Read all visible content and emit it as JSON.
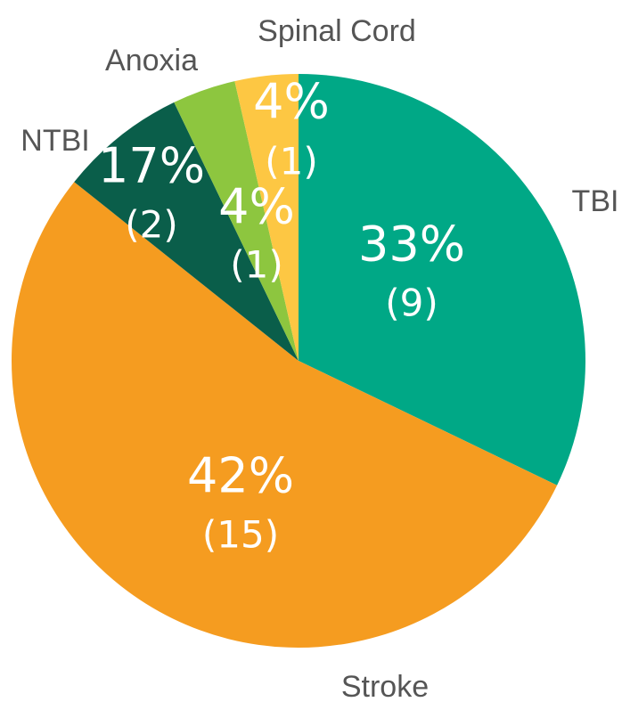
{
  "chart_data": {
    "type": "pie",
    "categories": [
      "TBI",
      "Stroke",
      "NTBI",
      "Anoxia",
      "Spinal Cord"
    ],
    "values": [
      33,
      42,
      17,
      4,
      4
    ],
    "value_labels": [
      "33%",
      "42%",
      "17%",
      "4%",
      "4%"
    ],
    "counts": [
      9,
      15,
      2,
      1,
      1
    ],
    "count_labels": [
      "(9)",
      "(15)",
      "(2)",
      "(1)",
      "(1)"
    ],
    "colors": [
      "#00a886",
      "#f59c20",
      "#0a5e4a",
      "#8dc63f",
      "#fdc743"
    ]
  }
}
